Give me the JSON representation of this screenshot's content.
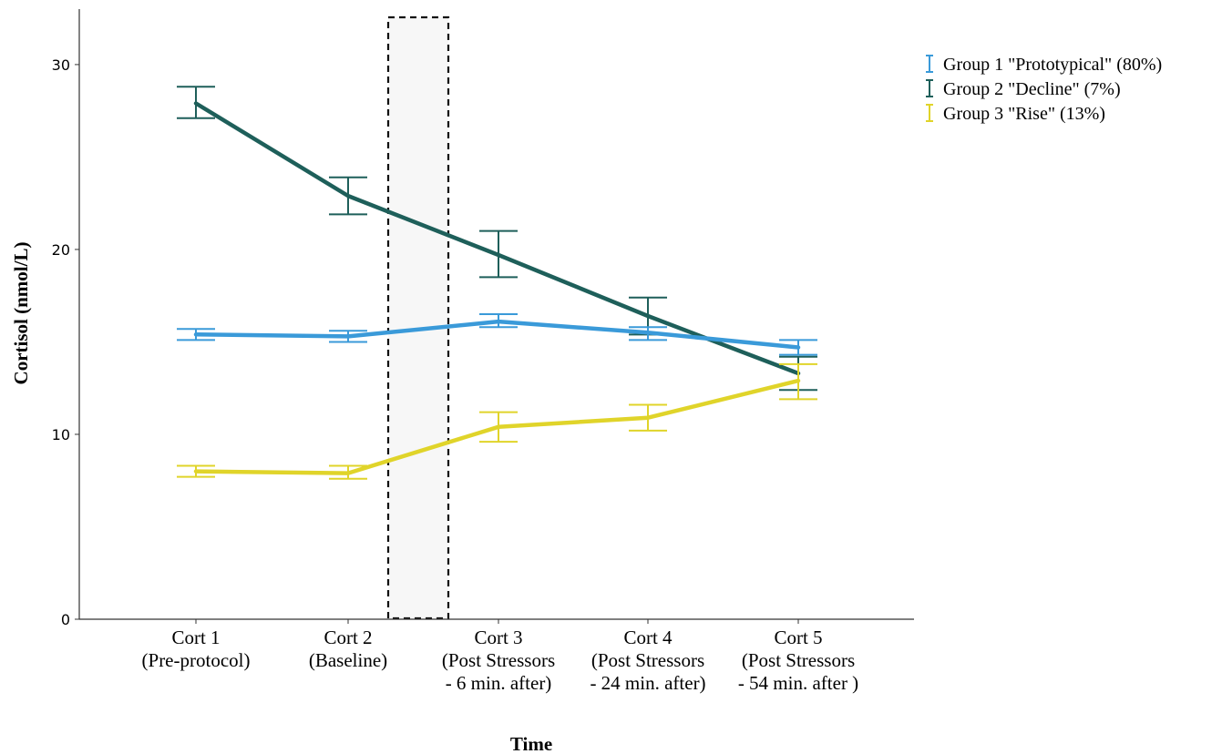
{
  "chart_data": {
    "type": "line",
    "xlabel": "Time",
    "ylabel": "Cortisol (nmol/L)",
    "ylim": [
      0,
      33
    ],
    "yticks": [
      0,
      10,
      20,
      30
    ],
    "grid": false,
    "legend_position": "top-right",
    "categories": [
      [
        "Cort 1",
        "(Pre-protocol)"
      ],
      [
        "Cort 2",
        "(Baseline)"
      ],
      [
        "Cort 3",
        "(Post Stressors",
        "- 6 min. after)"
      ],
      [
        "Cort 4",
        "(Post Stressors",
        "- 24 min. after)"
      ],
      [
        "Cort 5",
        "(Post Stressors",
        "- 54 min. after )"
      ]
    ],
    "highlight_region": {
      "between_categories": [
        1,
        2
      ],
      "style": "dashed-box"
    },
    "series": [
      {
        "name": "Group 1 \"Prototypical\" (80%)",
        "color": "#3a9ad9",
        "values": [
          15.4,
          15.3,
          16.1,
          15.5,
          14.7
        ],
        "error_low": [
          15.1,
          15.0,
          15.8,
          15.1,
          14.3
        ],
        "error_high": [
          15.7,
          15.6,
          16.5,
          15.8,
          15.1
        ]
      },
      {
        "name": "Group 2 \"Decline\" (7%)",
        "color": "#1e5f5a",
        "values": [
          27.9,
          22.9,
          19.7,
          16.4,
          13.3
        ],
        "error_low": [
          27.1,
          21.9,
          18.5,
          15.4,
          12.4
        ],
        "error_high": [
          28.8,
          23.9,
          21.0,
          17.4,
          14.2
        ]
      },
      {
        "name": "Group 3 \"Rise\" (13%)",
        "color": "#e0d42a",
        "values": [
          8.0,
          7.9,
          10.4,
          10.9,
          12.9
        ],
        "error_low": [
          7.7,
          7.6,
          9.6,
          10.2,
          11.9
        ],
        "error_high": [
          8.3,
          8.3,
          11.2,
          11.6,
          13.8
        ]
      }
    ]
  }
}
